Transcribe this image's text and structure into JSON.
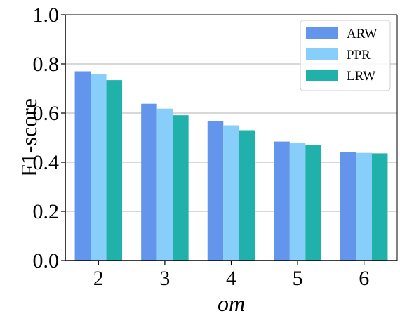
{
  "chart_data": {
    "type": "bar",
    "title": "",
    "xlabel": "om",
    "ylabel": "F1-score",
    "categories": [
      "2",
      "3",
      "4",
      "5",
      "6"
    ],
    "ylim": [
      0.0,
      1.0
    ],
    "yticks": [
      "0.0",
      "0.2",
      "0.4",
      "0.6",
      "0.8",
      "1.0"
    ],
    "grid": "horizontal",
    "legend_position": "top-right",
    "series": [
      {
        "name": "ARW",
        "color": "#6495ED",
        "values": [
          0.77,
          0.638,
          0.568,
          0.484,
          0.442
        ]
      },
      {
        "name": "PPR",
        "color": "#87CEFA",
        "values": [
          0.757,
          0.618,
          0.55,
          0.479,
          0.438
        ]
      },
      {
        "name": "LRW",
        "color": "#20B2AA",
        "values": [
          0.734,
          0.591,
          0.53,
          0.47,
          0.436
        ]
      }
    ]
  }
}
